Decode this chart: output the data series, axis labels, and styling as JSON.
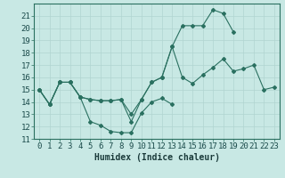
{
  "title": "",
  "xlabel": "Humidex (Indice chaleur)",
  "x": [
    0,
    1,
    2,
    3,
    4,
    5,
    6,
    7,
    8,
    9,
    10,
    11,
    12,
    13,
    14,
    15,
    16,
    17,
    18,
    19,
    20,
    21,
    22,
    23
  ],
  "line_bottom": [
    15.0,
    13.8,
    15.6,
    15.6,
    14.4,
    12.4,
    12.1,
    11.6,
    11.5,
    11.5,
    13.1,
    14.0,
    14.3,
    13.8,
    null,
    null,
    null,
    null,
    null,
    null,
    null,
    null,
    null,
    null
  ],
  "line_mid": [
    15.0,
    13.8,
    15.6,
    15.6,
    14.4,
    14.2,
    14.1,
    14.1,
    14.2,
    13.0,
    14.2,
    15.6,
    16.0,
    18.5,
    16.0,
    15.5,
    16.2,
    16.8,
    17.5,
    16.5,
    16.7,
    17.0,
    15.0,
    15.2
  ],
  "line_top": [
    15.0,
    13.8,
    15.6,
    15.6,
    14.4,
    14.2,
    14.1,
    14.1,
    14.2,
    12.4,
    14.2,
    15.6,
    16.0,
    18.5,
    20.2,
    20.2,
    20.2,
    21.5,
    21.2,
    19.7,
    null,
    null,
    null,
    null
  ],
  "bg_color": "#c8e8e4",
  "line_color": "#2a7060",
  "grid_color": "#b0d4d0",
  "ylim": [
    11,
    22
  ],
  "yticks": [
    11,
    12,
    13,
    14,
    15,
    16,
    17,
    18,
    19,
    20,
    21
  ],
  "xticks": [
    0,
    1,
    2,
    3,
    4,
    5,
    6,
    7,
    8,
    9,
    10,
    11,
    12,
    13,
    14,
    15,
    16,
    17,
    18,
    19,
    20,
    21,
    22,
    23
  ],
  "fontsize": 6.5
}
